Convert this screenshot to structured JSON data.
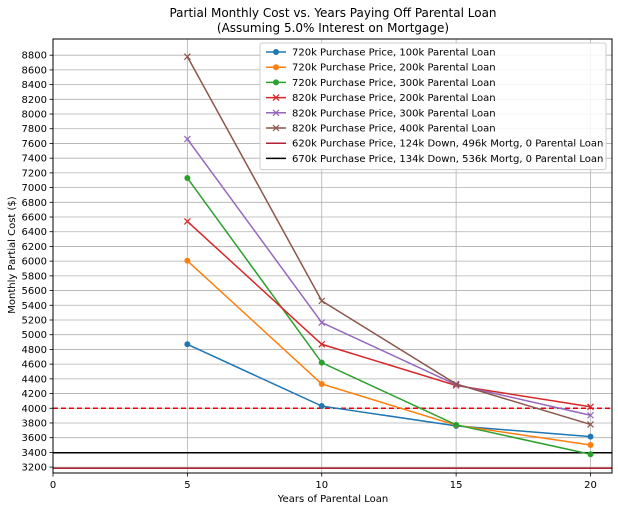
{
  "chart_data": {
    "type": "line",
    "title": "Partial Monthly Cost vs. Years Paying Off Parental Loan",
    "subtitle": "(Assuming 5.0% Interest on Mortgage)",
    "xlabel": "Years of Parental Loan",
    "ylabel": "Monthly Partial Cost ($)",
    "xlim": [
      0,
      20.8
    ],
    "ylim": [
      3120,
      9020
    ],
    "x_ticks": [
      0,
      5,
      10,
      15,
      20
    ],
    "y_ticks": [
      3200,
      3400,
      3600,
      3800,
      4000,
      4200,
      4400,
      4600,
      4800,
      5000,
      5200,
      5400,
      5600,
      5800,
      6000,
      6200,
      6400,
      6600,
      6800,
      7000,
      7200,
      7400,
      7600,
      7800,
      8000,
      8200,
      8400,
      8600,
      8800
    ],
    "grid": true,
    "legend_position": "top-right",
    "x": [
      5,
      10,
      15,
      20
    ],
    "series": [
      {
        "name": "720k Purchase Price, 100k Parental Loan",
        "values": [
          4870,
          4030,
          3760,
          3615
        ],
        "color": "#1f77b4",
        "marker": "circle"
      },
      {
        "name": "720k Purchase Price, 200k Parental Loan",
        "values": [
          6005,
          4330,
          3770,
          3500
        ],
        "color": "#ff7f0e",
        "marker": "circle"
      },
      {
        "name": "720k Purchase Price, 300k Parental Loan",
        "values": [
          7130,
          4620,
          3775,
          3375
        ],
        "color": "#2ca02c",
        "marker": "circle"
      },
      {
        "name": "820k Purchase Price, 200k Parental Loan",
        "values": [
          6540,
          4870,
          4310,
          4020
        ],
        "color": "#d62728",
        "marker": "x"
      },
      {
        "name": "820k Purchase Price, 300k Parental Loan",
        "values": [
          7660,
          5165,
          4320,
          3905
        ],
        "color": "#9467bd",
        "marker": "x"
      },
      {
        "name": "820k Purchase Price, 400k Parental Loan",
        "values": [
          8780,
          5460,
          4330,
          3780
        ],
        "color": "#8c564b",
        "marker": "x"
      }
    ],
    "reference_lines": [
      {
        "name": "620k Purchase Price, 124k Down, 496k Mortg, 0 Parental Loan",
        "y": 3185,
        "color": "#b22234",
        "style": "solid"
      },
      {
        "name": "670k Purchase Price, 134k Down, 536k Mortg, 0 Parental Loan",
        "y": 3395,
        "color": "#000000",
        "style": "solid"
      },
      {
        "name": "",
        "y": 4000,
        "color": "#e8000b",
        "style": "dashed"
      }
    ]
  }
}
